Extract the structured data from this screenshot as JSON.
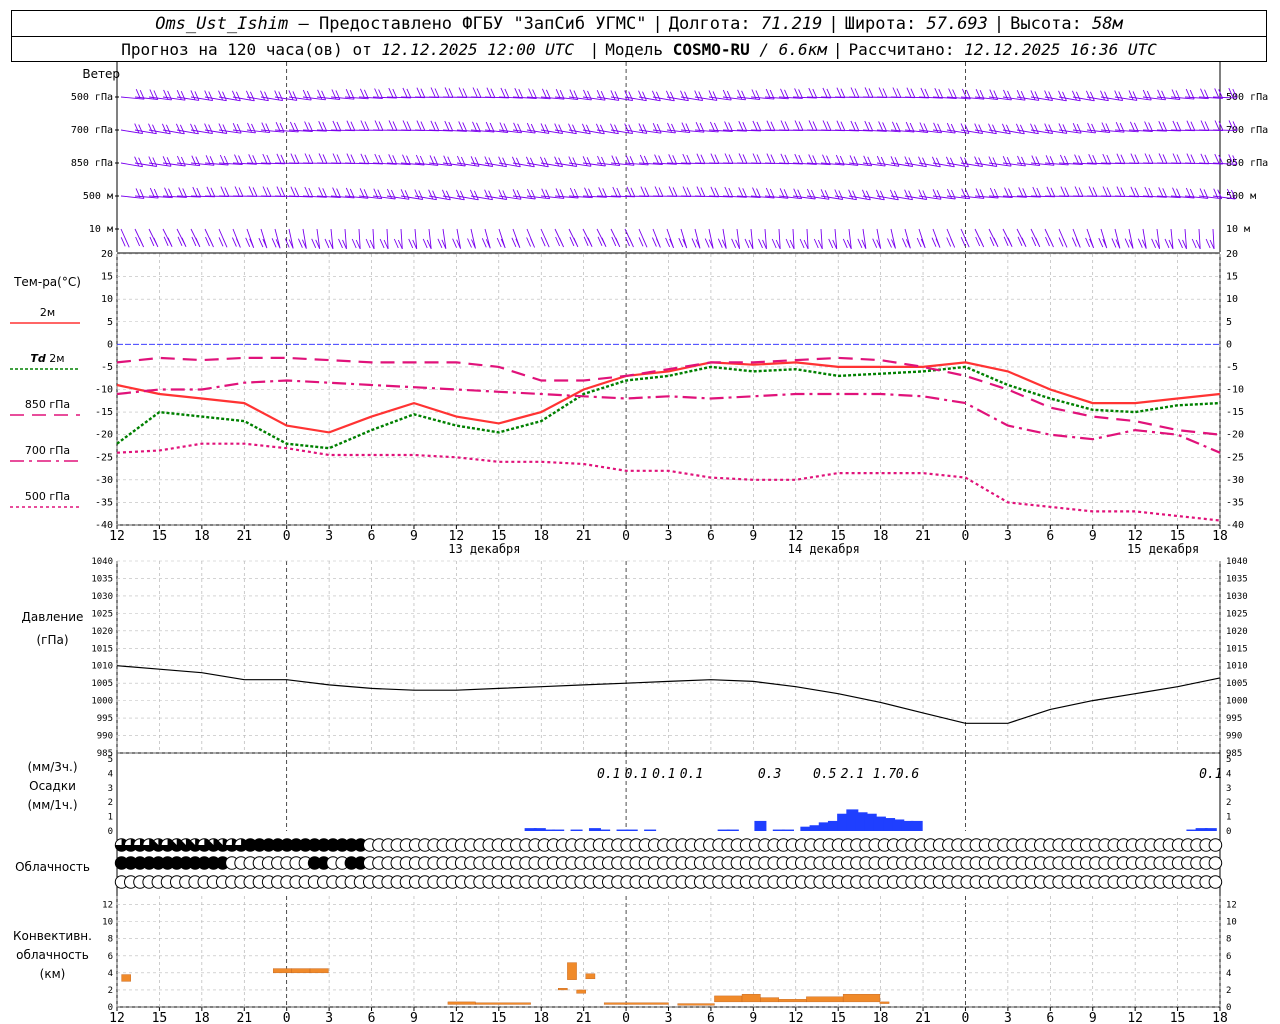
{
  "header": {
    "station": "Oms_Ust_Ishim",
    "provider": "– Предоставлено ФГБУ \"ЗапСиб УГМС\"",
    "lon_label": "Долгота:",
    "lon": "71.219",
    "lat_label": "Широта:",
    "lat": "57.693",
    "alt_label": "Высота:",
    "alt": "58м",
    "forecast_prefix": "Прогноз на 120 часа(ов) от",
    "forecast_time": "12.12.2025 12:00 UTC",
    "model_label": "Модель",
    "model": "COSMO-RU",
    "model_res": "/ 6.6км",
    "calc_label": "Рассчитано:",
    "calc_time": "12.12.2025 16:36 UTC"
  },
  "labels": {
    "wind": "Ветер",
    "temp": "Тем-ра(°C)",
    "t2m": "2м",
    "td_a": "Td",
    "td_b": "2м",
    "t850": "850 гПа",
    "t700": "700 гПа",
    "t500": "500 гПа",
    "pressure_a": "Давление",
    "pressure_b": "(гПа)",
    "precip_a": "(мм/3ч.)",
    "precip_b": "Осадки",
    "precip_c": "(мм/1ч.)",
    "cloud": "Облачность",
    "conv_a": "Конвективн.",
    "conv_b": "облачность",
    "conv_c": "(км)"
  },
  "colors": {
    "t2m": "#ff3333",
    "td": "#008000",
    "t850": "#e0127a",
    "t700": "#e0127a",
    "t500": "#e0127a",
    "pressure": "#000000",
    "precip": "#1f3fff",
    "conv": "#f08a2a",
    "wind": "#7a00ee",
    "zero": "#2222ff"
  },
  "chart_data": [
    {
      "type": "line",
      "panel": "wind",
      "levels": [
        "500 гПа",
        "700 гПа",
        "850 гПа",
        "500 м",
        "10 м"
      ],
      "icon": "wind-barb-icon"
    },
    {
      "type": "line",
      "panel": "temperature",
      "hours": [
        12,
        15,
        18,
        21,
        0,
        3,
        6,
        9,
        12,
        15,
        18,
        21,
        0,
        3,
        6,
        9,
        12,
        15,
        18,
        21,
        0,
        3,
        6,
        9,
        12,
        15,
        18
      ],
      "date_labels": [
        {
          "after_index": 8,
          "text": "13 декабря"
        },
        {
          "after_index": 16,
          "text": "14 декабря"
        },
        {
          "after_index": 24,
          "text": "15 декабря"
        }
      ],
      "ylim": [
        -40,
        20
      ],
      "yticks": [
        20,
        15,
        10,
        5,
        0,
        -5,
        -10,
        -15,
        -20,
        -25,
        -30,
        -35,
        -40
      ],
      "x": [
        0,
        3,
        6,
        9,
        12,
        15,
        18,
        21,
        24,
        27,
        30,
        33,
        36,
        39,
        42,
        45,
        48,
        51,
        54,
        57,
        60,
        63,
        66,
        69,
        72,
        75,
        78
      ],
      "series": [
        {
          "name": "2м",
          "values": [
            -9,
            -11,
            -12,
            -13,
            -18,
            -19.5,
            -16,
            -13,
            -16,
            -17.5,
            -15,
            -10,
            -7,
            -6,
            -4,
            -4.5,
            -4,
            -5,
            -5,
            -5,
            -4,
            -6,
            -10,
            -13,
            -13,
            -12,
            -11
          ]
        },
        {
          "name": "Td 2м",
          "values": [
            -22,
            -15,
            -16,
            -17,
            -22,
            -23,
            -19,
            -15.5,
            -18,
            -19.5,
            -17,
            -11,
            -8,
            -7,
            -5,
            -6,
            -5.5,
            -7,
            -6.5,
            -6,
            -5,
            -9,
            -12,
            -14.5,
            -15,
            -13.5,
            -13
          ]
        },
        {
          "name": "850 гПа",
          "values": [
            -4,
            -3,
            -3.5,
            -3,
            -3,
            -3.5,
            -4,
            -4,
            -4,
            -5,
            -8,
            -8,
            -7,
            -5.5,
            -4,
            -4,
            -3.5,
            -3,
            -3.5,
            -5,
            -7,
            -10,
            -14,
            -16,
            -17,
            -19,
            -20
          ]
        },
        {
          "name": "700 гПа",
          "values": [
            -11,
            -10,
            -10,
            -8.5,
            -8,
            -8.5,
            -9,
            -9.5,
            -10,
            -10.5,
            -11,
            -11.5,
            -12,
            -11.5,
            -12,
            -11.5,
            -11,
            -11,
            -11,
            -11.5,
            -13,
            -18,
            -20,
            -21,
            -19,
            -20,
            -24
          ]
        },
        {
          "name": "500 гПа",
          "values": [
            -24,
            -23.5,
            -22,
            -22,
            -23,
            -24.5,
            -24.5,
            -24.5,
            -25,
            -26,
            -26,
            -26.5,
            -28,
            -28,
            -29.5,
            -30,
            -30,
            -28.5,
            -28.5,
            -28.5,
            -29.5,
            -35,
            -36,
            -37,
            -37,
            -38,
            -39
          ]
        }
      ]
    },
    {
      "type": "line",
      "panel": "pressure",
      "ylim": [
        985,
        1040
      ],
      "yticks": [
        1040,
        1035,
        1030,
        1025,
        1020,
        1015,
        1010,
        1005,
        1000,
        995,
        990,
        985
      ],
      "x": [
        0,
        3,
        6,
        9,
        12,
        15,
        18,
        21,
        24,
        27,
        30,
        33,
        36,
        39,
        42,
        45,
        48,
        51,
        54,
        57,
        60,
        63,
        66,
        69,
        72,
        75,
        78
      ],
      "values": [
        1010,
        1009,
        1008,
        1006,
        1006,
        1004.5,
        1003.5,
        1003,
        1003,
        1003.5,
        1004,
        1004.5,
        1005,
        1005.5,
        1006,
        1005.5,
        1004,
        1002,
        999.5,
        996.5,
        993.5,
        993.5,
        997.5,
        1000,
        1002,
        1004,
        1006.5
      ]
    },
    {
      "type": "bar",
      "panel": "precipitation",
      "ylim": [
        0,
        5
      ],
      "yticks": [
        5,
        4,
        3,
        2,
        1,
        0
      ],
      "period_totals": [
        {
          "x": 53.5,
          "text": "0.1"
        },
        {
          "x": 56.5,
          "text": "0.1"
        },
        {
          "x": 59.5,
          "text": "0.1"
        },
        {
          "x": 62.5,
          "text": "0.1"
        },
        {
          "x": 71,
          "text": "0.3"
        },
        {
          "x": 77,
          "text": "0.5"
        },
        {
          "x": 80,
          "text": "2.1"
        },
        {
          "x": 83.5,
          "text": "1.7"
        },
        {
          "x": 86,
          "text": "0.6"
        },
        {
          "x": 119,
          "text": "0.1"
        }
      ],
      "hourly": [
        {
          "x": 45,
          "v": 0.2
        },
        {
          "x": 46,
          "v": 0.2
        },
        {
          "x": 47,
          "v": 0.1
        },
        {
          "x": 48,
          "v": 0.1
        },
        {
          "x": 50,
          "v": 0.1
        },
        {
          "x": 52,
          "v": 0.2
        },
        {
          "x": 53,
          "v": 0.1
        },
        {
          "x": 55,
          "v": 0.1
        },
        {
          "x": 56,
          "v": 0.1
        },
        {
          "x": 58,
          "v": 0.1
        },
        {
          "x": 66,
          "v": 0.1
        },
        {
          "x": 67,
          "v": 0.1
        },
        {
          "x": 70,
          "v": 0.7
        },
        {
          "x": 72,
          "v": 0.1
        },
        {
          "x": 73,
          "v": 0.1
        },
        {
          "x": 75,
          "v": 0.3
        },
        {
          "x": 76,
          "v": 0.4
        },
        {
          "x": 77,
          "v": 0.6
        },
        {
          "x": 78,
          "v": 0.7
        },
        {
          "x": 79,
          "v": 1.2
        },
        {
          "x": 80,
          "v": 1.5
        },
        {
          "x": 81,
          "v": 1.3
        },
        {
          "x": 82,
          "v": 1.2
        },
        {
          "x": 83,
          "v": 1.0
        },
        {
          "x": 84,
          "v": 0.9
        },
        {
          "x": 85,
          "v": 0.8
        },
        {
          "x": 86,
          "v": 0.7
        },
        {
          "x": 87,
          "v": 0.7
        },
        {
          "x": 117,
          "v": 0.1
        },
        {
          "x": 118,
          "v": 0.2
        },
        {
          "x": 119,
          "v": 0.2
        }
      ]
    },
    {
      "type": "table",
      "panel": "cloudiness",
      "cover_eighths": {
        "row_high": "666676777677668888888888888000000000000000000000000000000000000000000000000000000000000000000000000000000000000000000000",
        "row_mid": "888888888888000000000880088000000000000000000000000000000000000000000000000000000000000000000000000000000000000000000000",
        "row_low": "000000000000000000000000000000000000000000000000000000000000000000000000000000000000000000000000000000000000000000000000"
      }
    },
    {
      "type": "bar",
      "panel": "convective",
      "ylim": [
        0,
        13
      ],
      "yticks": [
        12,
        10,
        8,
        6,
        4,
        2,
        0
      ],
      "bars": [
        {
          "x0": 0.5,
          "x1": 1.5,
          "bottom": 3,
          "top": 3.8
        },
        {
          "x0": 17,
          "x1": 19,
          "bottom": 4,
          "top": 4.5
        },
        {
          "x0": 19,
          "x1": 21,
          "bottom": 4,
          "top": 4.5
        },
        {
          "x0": 21,
          "x1": 23,
          "bottom": 4,
          "top": 4.5
        },
        {
          "x0": 36,
          "x1": 39,
          "bottom": 0.3,
          "top": 0.6
        },
        {
          "x0": 39,
          "x1": 45,
          "bottom": 0.3,
          "top": 0.5
        },
        {
          "x0": 48,
          "x1": 49,
          "bottom": 2,
          "top": 2.2
        },
        {
          "x0": 49,
          "x1": 50,
          "bottom": 3.2,
          "top": 5.2
        },
        {
          "x0": 50,
          "x1": 51,
          "bottom": 1.6,
          "top": 2
        },
        {
          "x0": 51,
          "x1": 52,
          "bottom": 3.3,
          "top": 3.9
        },
        {
          "x0": 53,
          "x1": 60,
          "bottom": 0.3,
          "top": 0.5
        },
        {
          "x0": 61,
          "x1": 65,
          "bottom": 0.2,
          "top": 0.4
        },
        {
          "x0": 65,
          "x1": 68,
          "bottom": 0.6,
          "top": 1.3
        },
        {
          "x0": 68,
          "x1": 70,
          "bottom": 0.6,
          "top": 1.5
        },
        {
          "x0": 70,
          "x1": 72,
          "bottom": 0.6,
          "top": 1.1
        },
        {
          "x0": 72,
          "x1": 75,
          "bottom": 0.6,
          "top": 0.9
        },
        {
          "x0": 75,
          "x1": 79,
          "bottom": 0.6,
          "top": 1.2
        },
        {
          "x0": 79,
          "x1": 83,
          "bottom": 0.6,
          "top": 1.5
        },
        {
          "x0": 83,
          "x1": 84,
          "bottom": 0.4,
          "top": 0.6
        }
      ]
    }
  ]
}
